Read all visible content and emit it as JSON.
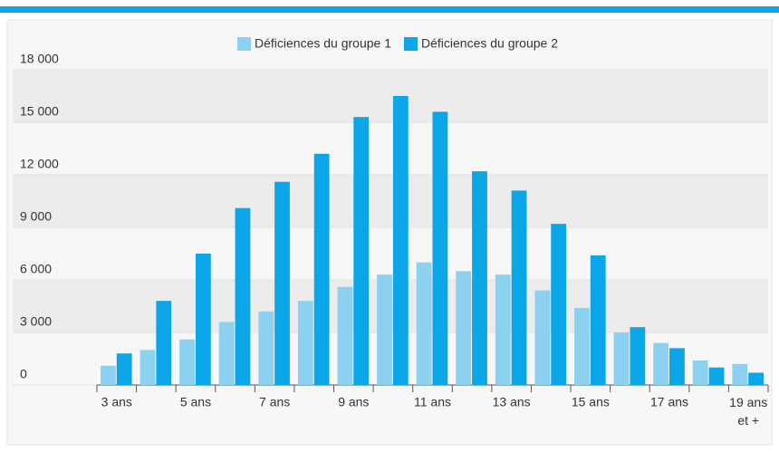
{
  "chart_data": {
    "type": "bar",
    "categories": [
      "3 ans",
      null,
      "5 ans",
      null,
      "7 ans",
      null,
      "9 ans",
      null,
      "11 ans",
      null,
      "13 ans",
      null,
      "15 ans",
      null,
      "17 ans",
      null,
      "19 ans\net +"
    ],
    "series": [
      {
        "name": "Déficiences du groupe 1",
        "color": "#8dd1f0",
        "values": [
          1100,
          2000,
          2600,
          3600,
          4200,
          4800,
          5600,
          6300,
          7000,
          6500,
          6300,
          5400,
          4400,
          3000,
          2400,
          1400,
          1200
        ]
      },
      {
        "name": "Déficiences du groupe 2",
        "color": "#0aa6e8",
        "values": [
          1800,
          4800,
          7500,
          10100,
          11600,
          13200,
          15300,
          16500,
          15600,
          12200,
          11100,
          9200,
          7400,
          3300,
          2100,
          1000,
          700
        ]
      }
    ],
    "ylim": [
      0,
      18000
    ],
    "yticks": [
      0,
      {
        "value": 3000,
        "label": "3 000"
      },
      {
        "value": 6000,
        "label": "6 000"
      },
      {
        "value": 9000,
        "label": "9 000"
      },
      {
        "value": 12000,
        "label": "12 000"
      },
      {
        "value": 15000,
        "label": "15 000"
      },
      {
        "value": 18000,
        "label": "18 000"
      }
    ],
    "grid": true,
    "legend": "top"
  }
}
